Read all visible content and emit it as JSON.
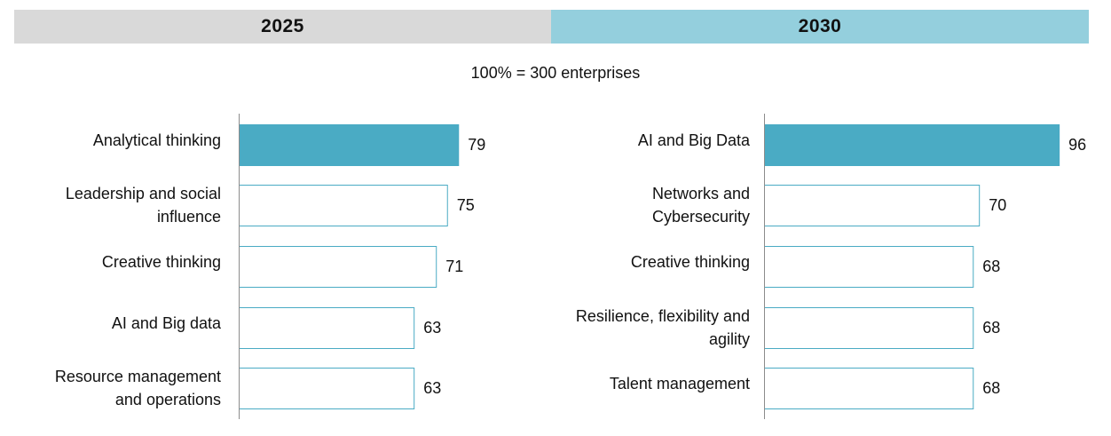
{
  "header": {
    "year_left": "2025",
    "year_right": "2030",
    "base_note": "100% = 300 enterprises"
  },
  "colors": {
    "highlight_bar": "#4aabc4",
    "bar_outline": "#4aabc4",
    "header_left_bg": "#d9d9d9",
    "header_right_bg": "#94cfdd"
  },
  "chart_data": [
    {
      "type": "bar",
      "orientation": "horizontal",
      "title": "2025",
      "categories": [
        [
          "Analytical thinking"
        ],
        [
          "Leadership and social",
          "influence"
        ],
        [
          "Creative thinking"
        ],
        [
          "AI and Big data"
        ],
        [
          "Resource management",
          "and operations"
        ]
      ],
      "values": [
        79,
        75,
        71,
        63,
        63
      ],
      "highlight_index": 0,
      "xlim": [
        0,
        100
      ],
      "grid": false,
      "legend": "none"
    },
    {
      "type": "bar",
      "orientation": "horizontal",
      "title": "2030",
      "categories": [
        [
          "AI and Big Data"
        ],
        [
          "Networks and",
          "Cybersecurity"
        ],
        [
          "Creative thinking"
        ],
        [
          "Resilience, flexibility and",
          "agility"
        ],
        [
          "Talent management"
        ]
      ],
      "values": [
        96,
        70,
        68,
        68,
        68
      ],
      "highlight_index": 0,
      "xlim": [
        0,
        100
      ],
      "grid": false,
      "legend": "none"
    }
  ]
}
